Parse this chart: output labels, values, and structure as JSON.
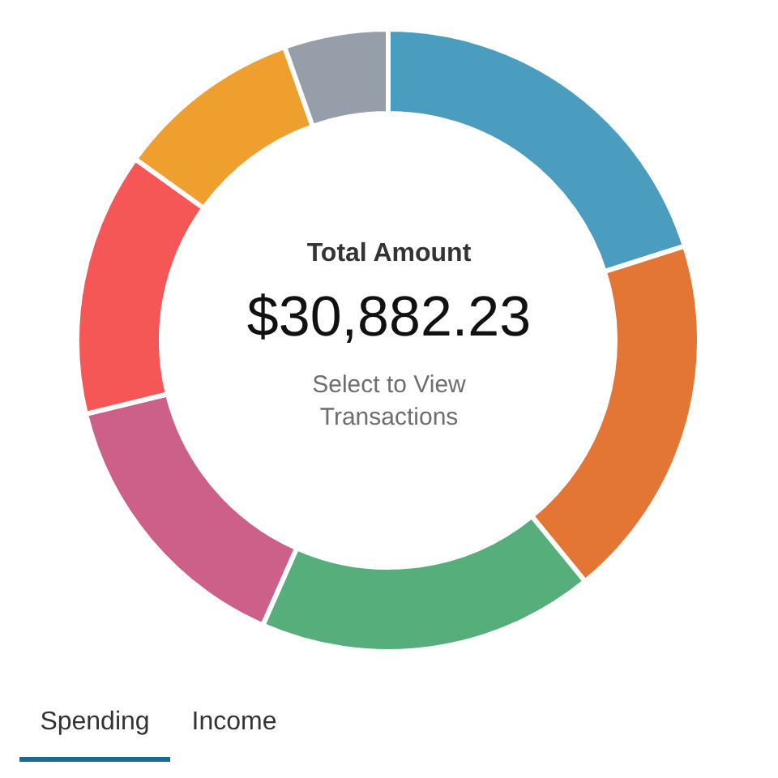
{
  "chart_data": {
    "type": "donut",
    "categories": [
      null,
      null,
      null,
      null,
      null,
      null,
      null
    ],
    "values": [
      20.1,
      19.0,
      17.5,
      14.6,
      13.7,
      9.7,
      5.4
    ],
    "colors": [
      "#4a9dbf",
      "#e37535",
      "#56ae7a",
      "#cc6088",
      "#f55656",
      "#ee9f2e",
      "#959ea9"
    ],
    "annotations": [
      "Total Amount",
      "$30,882.23",
      "Select to View Transactions",
      "Spending",
      "Income"
    ]
  }
}
